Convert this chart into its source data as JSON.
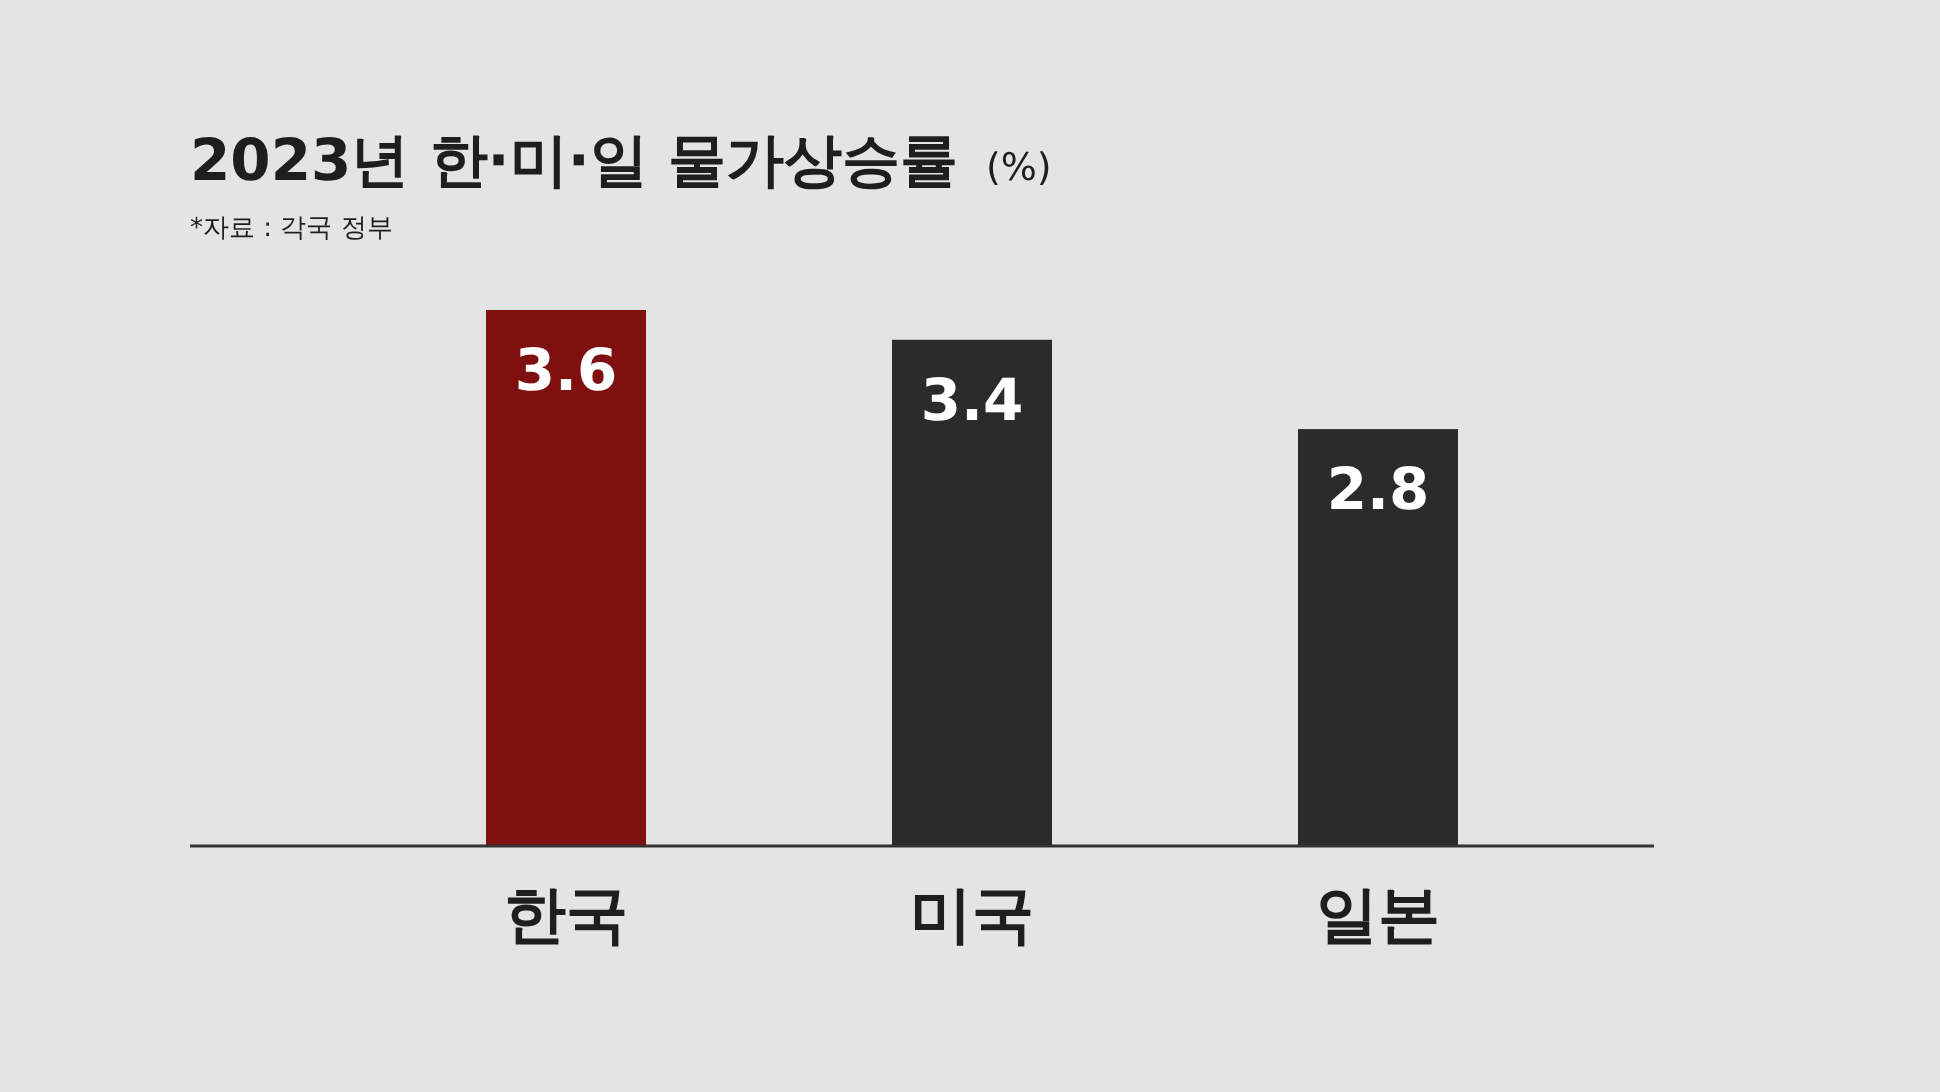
{
  "chart_data": {
    "type": "bar",
    "title": "2023년 한·미·일  물가상승률",
    "ylabel": "(%)",
    "annotations": [
      "*자료 : 각국 정부"
    ],
    "categories": [
      "한국",
      "미국",
      "일본"
    ],
    "values": [
      3.6,
      3.4,
      2.8
    ],
    "colors": [
      "#7e1010",
      "#2b2b2b",
      "#2b2b2b"
    ],
    "data_labels": true
  }
}
